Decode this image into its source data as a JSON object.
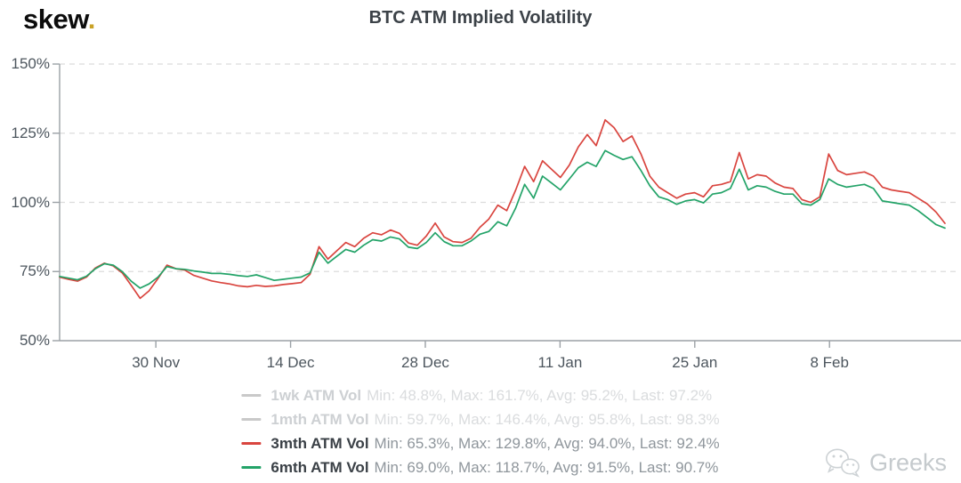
{
  "header": {
    "logo_text": "skew",
    "logo_dot": ".",
    "title": "BTC ATM Implied Volatility"
  },
  "watermark": {
    "label": "Greeks",
    "icon": "wechat-icon"
  },
  "colors": {
    "axis": "#9ba1a6",
    "gridline": "#dcdcdc",
    "tick_label": "#4d565e",
    "title": "#3c4248",
    "logo_dot_gold": "#c9a227",
    "series_red": "#d9453f",
    "series_green": "#23a368",
    "disabled_legend": "#c9c9c9"
  },
  "chart_data": {
    "type": "line",
    "title": "BTC ATM Implied Volatility",
    "xlabel": "",
    "ylabel": "",
    "ylim": [
      50,
      150
    ],
    "grid": "horizontal-dashed",
    "legend_position": "bottom",
    "ytick_labels": [
      "150%",
      "125%",
      "100%",
      "75%",
      "50%"
    ],
    "ytick_values": [
      150,
      125,
      100,
      75,
      50
    ],
    "xtick_labels": [
      "30 Nov",
      "14 Dec",
      "28 Dec",
      "11 Jan",
      "25 Jan",
      "8 Feb"
    ],
    "xtick_days": [
      10,
      24,
      38,
      52,
      66,
      80
    ],
    "x_total_days": 92,
    "x_range_note": "approx 20 Nov to 20 Feb, points evenly spaced",
    "series": [
      {
        "name": "1wk ATM Vol",
        "visible": false,
        "color": "#c9c9c9",
        "min": 48.8,
        "max": 161.7,
        "avg": 95.2,
        "last": 97.2,
        "stats_text": "Min: 48.8%, Max: 161.7%, Avg: 95.2%, Last: 97.2%"
      },
      {
        "name": "1mth ATM Vol",
        "visible": false,
        "color": "#c9c9c9",
        "min": 59.7,
        "max": 146.4,
        "avg": 95.8,
        "last": 98.3,
        "stats_text": "Min: 59.7%, Max: 146.4%, Avg: 95.8%, Last: 98.3%"
      },
      {
        "name": "3mth ATM Vol",
        "visible": true,
        "color": "#d9453f",
        "min": 65.3,
        "max": 129.8,
        "avg": 94.0,
        "last": 92.4,
        "stats_text": "Min: 65.3%, Max: 129.8%, Avg: 94.0%, Last: 92.4%",
        "values": [
          73.0,
          72.2,
          71.5,
          73.0,
          76.3,
          78.0,
          77.0,
          74.5,
          70.0,
          65.3,
          68.0,
          72.5,
          77.3,
          76.0,
          75.5,
          73.6,
          72.6,
          71.6,
          71.0,
          70.5,
          69.8,
          69.5,
          70.0,
          69.6,
          69.8,
          70.3,
          70.6,
          71.0,
          74.0,
          84.0,
          79.5,
          82.5,
          85.5,
          84.0,
          87.0,
          89.0,
          88.3,
          90.0,
          88.8,
          85.3,
          84.5,
          87.8,
          92.5,
          87.5,
          85.8,
          85.5,
          87.0,
          91.0,
          94.0,
          99.0,
          97.0,
          104.5,
          113.0,
          107.5,
          115.0,
          112.0,
          109.0,
          113.5,
          120.0,
          124.5,
          120.5,
          129.8,
          127.0,
          122.0,
          124.0,
          117.5,
          109.5,
          105.5,
          103.5,
          101.5,
          103.0,
          103.5,
          102.0,
          106.0,
          106.5,
          107.5,
          118.0,
          108.5,
          110.0,
          109.5,
          107.0,
          105.5,
          105.0,
          101.0,
          100.0,
          102.0,
          117.5,
          111.5,
          110.0,
          110.5,
          111.0,
          109.5,
          105.5,
          104.5,
          104.0,
          103.5,
          101.5,
          99.5,
          96.5,
          92.4
        ]
      },
      {
        "name": "6mth ATM Vol",
        "visible": true,
        "color": "#23a368",
        "min": 69.0,
        "max": 118.7,
        "avg": 91.5,
        "last": 90.7,
        "stats_text": "Min: 69.0%, Max: 118.7%, Avg: 91.5%, Last: 90.7%",
        "values": [
          73.2,
          72.6,
          72.0,
          73.3,
          76.0,
          77.8,
          77.3,
          75.0,
          71.5,
          69.0,
          70.5,
          73.0,
          76.8,
          76.0,
          75.8,
          75.2,
          74.8,
          74.3,
          74.3,
          74.0,
          73.5,
          73.2,
          73.8,
          72.8,
          71.8,
          72.2,
          72.6,
          73.0,
          74.5,
          82.0,
          78.0,
          80.5,
          83.0,
          82.0,
          84.5,
          86.5,
          86.0,
          87.5,
          86.8,
          83.8,
          83.3,
          85.5,
          89.0,
          85.8,
          84.3,
          84.3,
          86.0,
          88.5,
          89.5,
          93.0,
          91.5,
          98.0,
          106.5,
          101.5,
          109.5,
          107.0,
          104.5,
          108.5,
          112.5,
          114.5,
          113.0,
          118.7,
          117.0,
          115.5,
          116.5,
          111.5,
          106.0,
          102.0,
          101.0,
          99.3,
          100.5,
          101.0,
          99.8,
          103.0,
          103.5,
          105.0,
          112.0,
          104.5,
          106.0,
          105.5,
          104.0,
          103.0,
          103.0,
          99.5,
          99.0,
          101.0,
          108.5,
          106.5,
          105.5,
          106.0,
          106.5,
          105.0,
          100.5,
          100.0,
          99.5,
          99.0,
          97.0,
          94.5,
          92.0,
          90.7
        ]
      }
    ]
  }
}
